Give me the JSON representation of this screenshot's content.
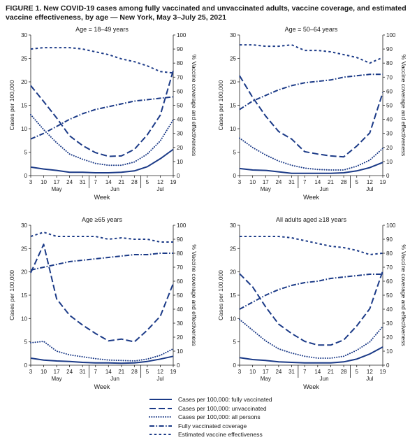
{
  "figure_title": "FIGURE 1. New COVID-19 cases among fully vaccinated and unvaccinated adults, vaccine coverage, and estimated vaccine effectiveness, by age — New York, May 3–July 25, 2021",
  "colors": {
    "line": "#1b3a87",
    "axis": "#222222"
  },
  "line_styles": {
    "Cases per 100,000: fully vaccinated": "solid",
    "Cases per 100,000: unvaccinated": "long-dash",
    "Cases per 100,000: all persons": "dotted",
    "Fully vaccinated coverage": "dash-dot",
    "Estimated vaccine effectiveness": "short-dash"
  },
  "legend": [
    "Cases per 100,000: fully vaccinated",
    "Cases per 100,000: unvaccinated",
    "Cases per 100,000: all persons",
    "Fully vaccinated coverage",
    "Estimated vaccine effectiveness"
  ],
  "chart_data": [
    {
      "type": "line",
      "title": "Age = 18–49 years",
      "xlabel": "Week",
      "ylabel": "Cases per 100,000",
      "y2label": "% Vaccine coverage and effectiveness",
      "x_ticks": [
        "3",
        "10",
        "17",
        "24",
        "31",
        "7",
        "14",
        "21",
        "28",
        "5",
        "12",
        "19"
      ],
      "month_labels": [
        "May",
        "Jun",
        "Jul"
      ],
      "ylim": [
        0,
        30
      ],
      "y_ticks": [
        0,
        5,
        10,
        15,
        20,
        25,
        30
      ],
      "y2lim": [
        0,
        100
      ],
      "y2_ticks": [
        0,
        10,
        20,
        30,
        40,
        50,
        60,
        70,
        80,
        90,
        100
      ],
      "grid": false,
      "series": [
        {
          "name": "Cases per 100,000: fully vaccinated",
          "axis": "left",
          "values": [
            1.8,
            1.4,
            1.1,
            0.7,
            0.7,
            0.6,
            0.6,
            0.7,
            1.0,
            1.9,
            3.6,
            5.6
          ]
        },
        {
          "name": "Cases per 100,000: unvaccinated",
          "axis": "left",
          "values": [
            19.2,
            15.8,
            12.3,
            8.5,
            6.4,
            4.9,
            4.1,
            4.2,
            5.6,
            8.7,
            12.9,
            22.4
          ]
        },
        {
          "name": "Cases per 100,000: all persons",
          "axis": "left",
          "values": [
            13.0,
            9.8,
            7.0,
            4.6,
            3.5,
            2.6,
            2.2,
            2.2,
            2.9,
            4.6,
            7.4,
            11.9
          ]
        },
        {
          "name": "Fully vaccinated coverage",
          "axis": "right",
          "values": [
            26,
            30,
            35,
            40,
            44,
            47,
            49,
            51,
            53,
            54,
            55,
            56
          ]
        },
        {
          "name": "Estimated vaccine effectiveness",
          "axis": "right",
          "values": [
            90,
            91,
            91,
            91,
            90,
            88,
            86,
            83,
            81,
            78,
            74,
            73
          ]
        }
      ]
    },
    {
      "type": "line",
      "title": "Age = 50–64 years",
      "xlabel": "Week",
      "ylabel": "Cases per 100,000",
      "y2label": "% Vaccine coverage and effectiveness",
      "x_ticks": [
        "3",
        "10",
        "17",
        "24",
        "31",
        "7",
        "14",
        "21",
        "28",
        "5",
        "12",
        "19"
      ],
      "month_labels": [
        "May",
        "Jun",
        "Jul"
      ],
      "ylim": [
        0,
        30
      ],
      "y_ticks": [
        0,
        5,
        10,
        15,
        20,
        25,
        30
      ],
      "y2lim": [
        0,
        100
      ],
      "y2_ticks": [
        0,
        10,
        20,
        30,
        40,
        50,
        60,
        70,
        80,
        90,
        100
      ],
      "grid": false,
      "series": [
        {
          "name": "Cases per 100,000: fully vaccinated",
          "axis": "left",
          "values": [
            1.5,
            1.2,
            1.1,
            0.8,
            0.5,
            0.5,
            0.5,
            0.5,
            0.6,
            1.0,
            1.7,
            2.8
          ]
        },
        {
          "name": "Cases per 100,000: unvaccinated",
          "axis": "left",
          "values": [
            21.3,
            16.7,
            12.7,
            9.4,
            7.8,
            5.1,
            4.6,
            4.2,
            4.0,
            6.3,
            9.1,
            17.7
          ]
        },
        {
          "name": "Cases per 100,000: all persons",
          "axis": "left",
          "values": [
            8.0,
            6.0,
            4.4,
            3.1,
            2.2,
            1.6,
            1.3,
            1.2,
            1.2,
            2.0,
            3.3,
            5.8
          ]
        },
        {
          "name": "Fully vaccinated coverage",
          "axis": "right",
          "values": [
            47,
            53,
            57,
            61,
            64,
            66,
            67,
            68,
            70,
            71,
            72,
            72
          ]
        },
        {
          "name": "Estimated vaccine effectiveness",
          "axis": "right",
          "values": [
            93,
            93,
            92,
            92,
            93,
            89,
            89,
            88,
            86,
            84,
            80,
            84
          ]
        }
      ]
    },
    {
      "type": "line",
      "title": "Age ≥65 years",
      "xlabel": "Week",
      "ylabel": "Cases per 100,000",
      "y2label": "% Vaccine coverage and effectiveness",
      "x_ticks": [
        "3",
        "10",
        "17",
        "24",
        "31",
        "7",
        "14",
        "21",
        "28",
        "5",
        "12",
        "19"
      ],
      "month_labels": [
        "May",
        "Jun",
        "Jul"
      ],
      "ylim": [
        0,
        30
      ],
      "y_ticks": [
        0,
        5,
        10,
        15,
        20,
        25,
        30
      ],
      "y2lim": [
        0,
        100
      ],
      "y2_ticks": [
        0,
        10,
        20,
        30,
        40,
        50,
        60,
        70,
        80,
        90,
        100
      ],
      "grid": false,
      "series": [
        {
          "name": "Cases per 100,000: fully vaccinated",
          "axis": "left",
          "values": [
            1.5,
            1.1,
            0.9,
            0.8,
            0.6,
            0.5,
            0.5,
            0.4,
            0.5,
            0.8,
            1.3,
            1.9
          ]
        },
        {
          "name": "Cases per 100,000: unvaccinated",
          "axis": "left",
          "values": [
            19.8,
            25.9,
            14.2,
            10.7,
            8.6,
            6.8,
            5.2,
            5.6,
            5.0,
            7.5,
            10.5,
            17.5
          ]
        },
        {
          "name": "Cases per 100,000: all persons",
          "axis": "left",
          "values": [
            4.8,
            5.1,
            3.0,
            2.2,
            1.8,
            1.4,
            1.1,
            1.0,
            0.9,
            1.3,
            2.1,
            3.5
          ]
        },
        {
          "name": "Fully vaccinated coverage",
          "axis": "right",
          "values": [
            68,
            70,
            72,
            74,
            75,
            76,
            77,
            78,
            79,
            79,
            80,
            80
          ]
        },
        {
          "name": "Estimated vaccine effectiveness",
          "axis": "right",
          "values": [
            92,
            95,
            92,
            92,
            92,
            92,
            90,
            91,
            90,
            90,
            88,
            88
          ]
        }
      ]
    },
    {
      "type": "line",
      "title": "All adults aged ≥18 years",
      "xlabel": "Week",
      "ylabel": "Cases per 100,000",
      "y2label": "% Vaccine coverage and effectiveness",
      "x_ticks": [
        "3",
        "10",
        "17",
        "24",
        "31",
        "7",
        "14",
        "21",
        "28",
        "5",
        "12",
        "19"
      ],
      "month_labels": [
        "May",
        "Jun",
        "Jul"
      ],
      "ylim": [
        0,
        30
      ],
      "y_ticks": [
        0,
        5,
        10,
        15,
        20,
        25,
        30
      ],
      "y2lim": [
        0,
        100
      ],
      "y2_ticks": [
        0,
        10,
        20,
        30,
        40,
        50,
        60,
        70,
        80,
        90,
        100
      ],
      "grid": false,
      "series": [
        {
          "name": "Cases per 100,000: fully vaccinated",
          "axis": "left",
          "values": [
            1.6,
            1.2,
            1.0,
            0.7,
            0.6,
            0.5,
            0.5,
            0.5,
            0.7,
            1.3,
            2.4,
            3.9
          ]
        },
        {
          "name": "Cases per 100,000: unvaccinated",
          "axis": "left",
          "values": [
            19.6,
            16.8,
            12.5,
            8.8,
            6.8,
            5.1,
            4.3,
            4.3,
            5.4,
            8.4,
            12.1,
            20.2
          ]
        },
        {
          "name": "Cases per 100,000: all persons",
          "axis": "left",
          "values": [
            9.8,
            7.5,
            5.2,
            3.5,
            2.6,
            1.9,
            1.5,
            1.5,
            1.9,
            3.2,
            5.0,
            8.3
          ]
        },
        {
          "name": "Fully vaccinated coverage",
          "axis": "right",
          "values": [
            40,
            45,
            50,
            54,
            57,
            59,
            60,
            62,
            63,
            64,
            65,
            65
          ]
        },
        {
          "name": "Estimated vaccine effectiveness",
          "axis": "right",
          "values": [
            92,
            92,
            92,
            92,
            91,
            89,
            87,
            85,
            84,
            82,
            79,
            80
          ]
        }
      ]
    }
  ]
}
